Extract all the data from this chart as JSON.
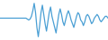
{
  "values": [
    0,
    0,
    0,
    0,
    0,
    0,
    0,
    0,
    0,
    0,
    0,
    0,
    0,
    0,
    0,
    0,
    0,
    0,
    0,
    0,
    -0.5,
    -1,
    -0.5,
    1,
    4,
    8,
    3,
    -5,
    -10,
    -4,
    3,
    7,
    2,
    -3,
    -7,
    -2,
    3,
    6,
    1,
    -2,
    -5,
    -8,
    -3,
    2,
    5,
    2,
    -2,
    -4,
    -1,
    2,
    4,
    2,
    -1,
    -3,
    -5,
    -2,
    1,
    3,
    2,
    -1,
    -2,
    -4,
    -2,
    1,
    2,
    1,
    -1,
    -3,
    -2,
    0,
    1,
    2,
    1,
    -1,
    -2,
    -1,
    0,
    1,
    1,
    0
  ],
  "line_color": "#4a9fd4",
  "background_color": "#ffffff",
  "linewidth": 0.9
}
